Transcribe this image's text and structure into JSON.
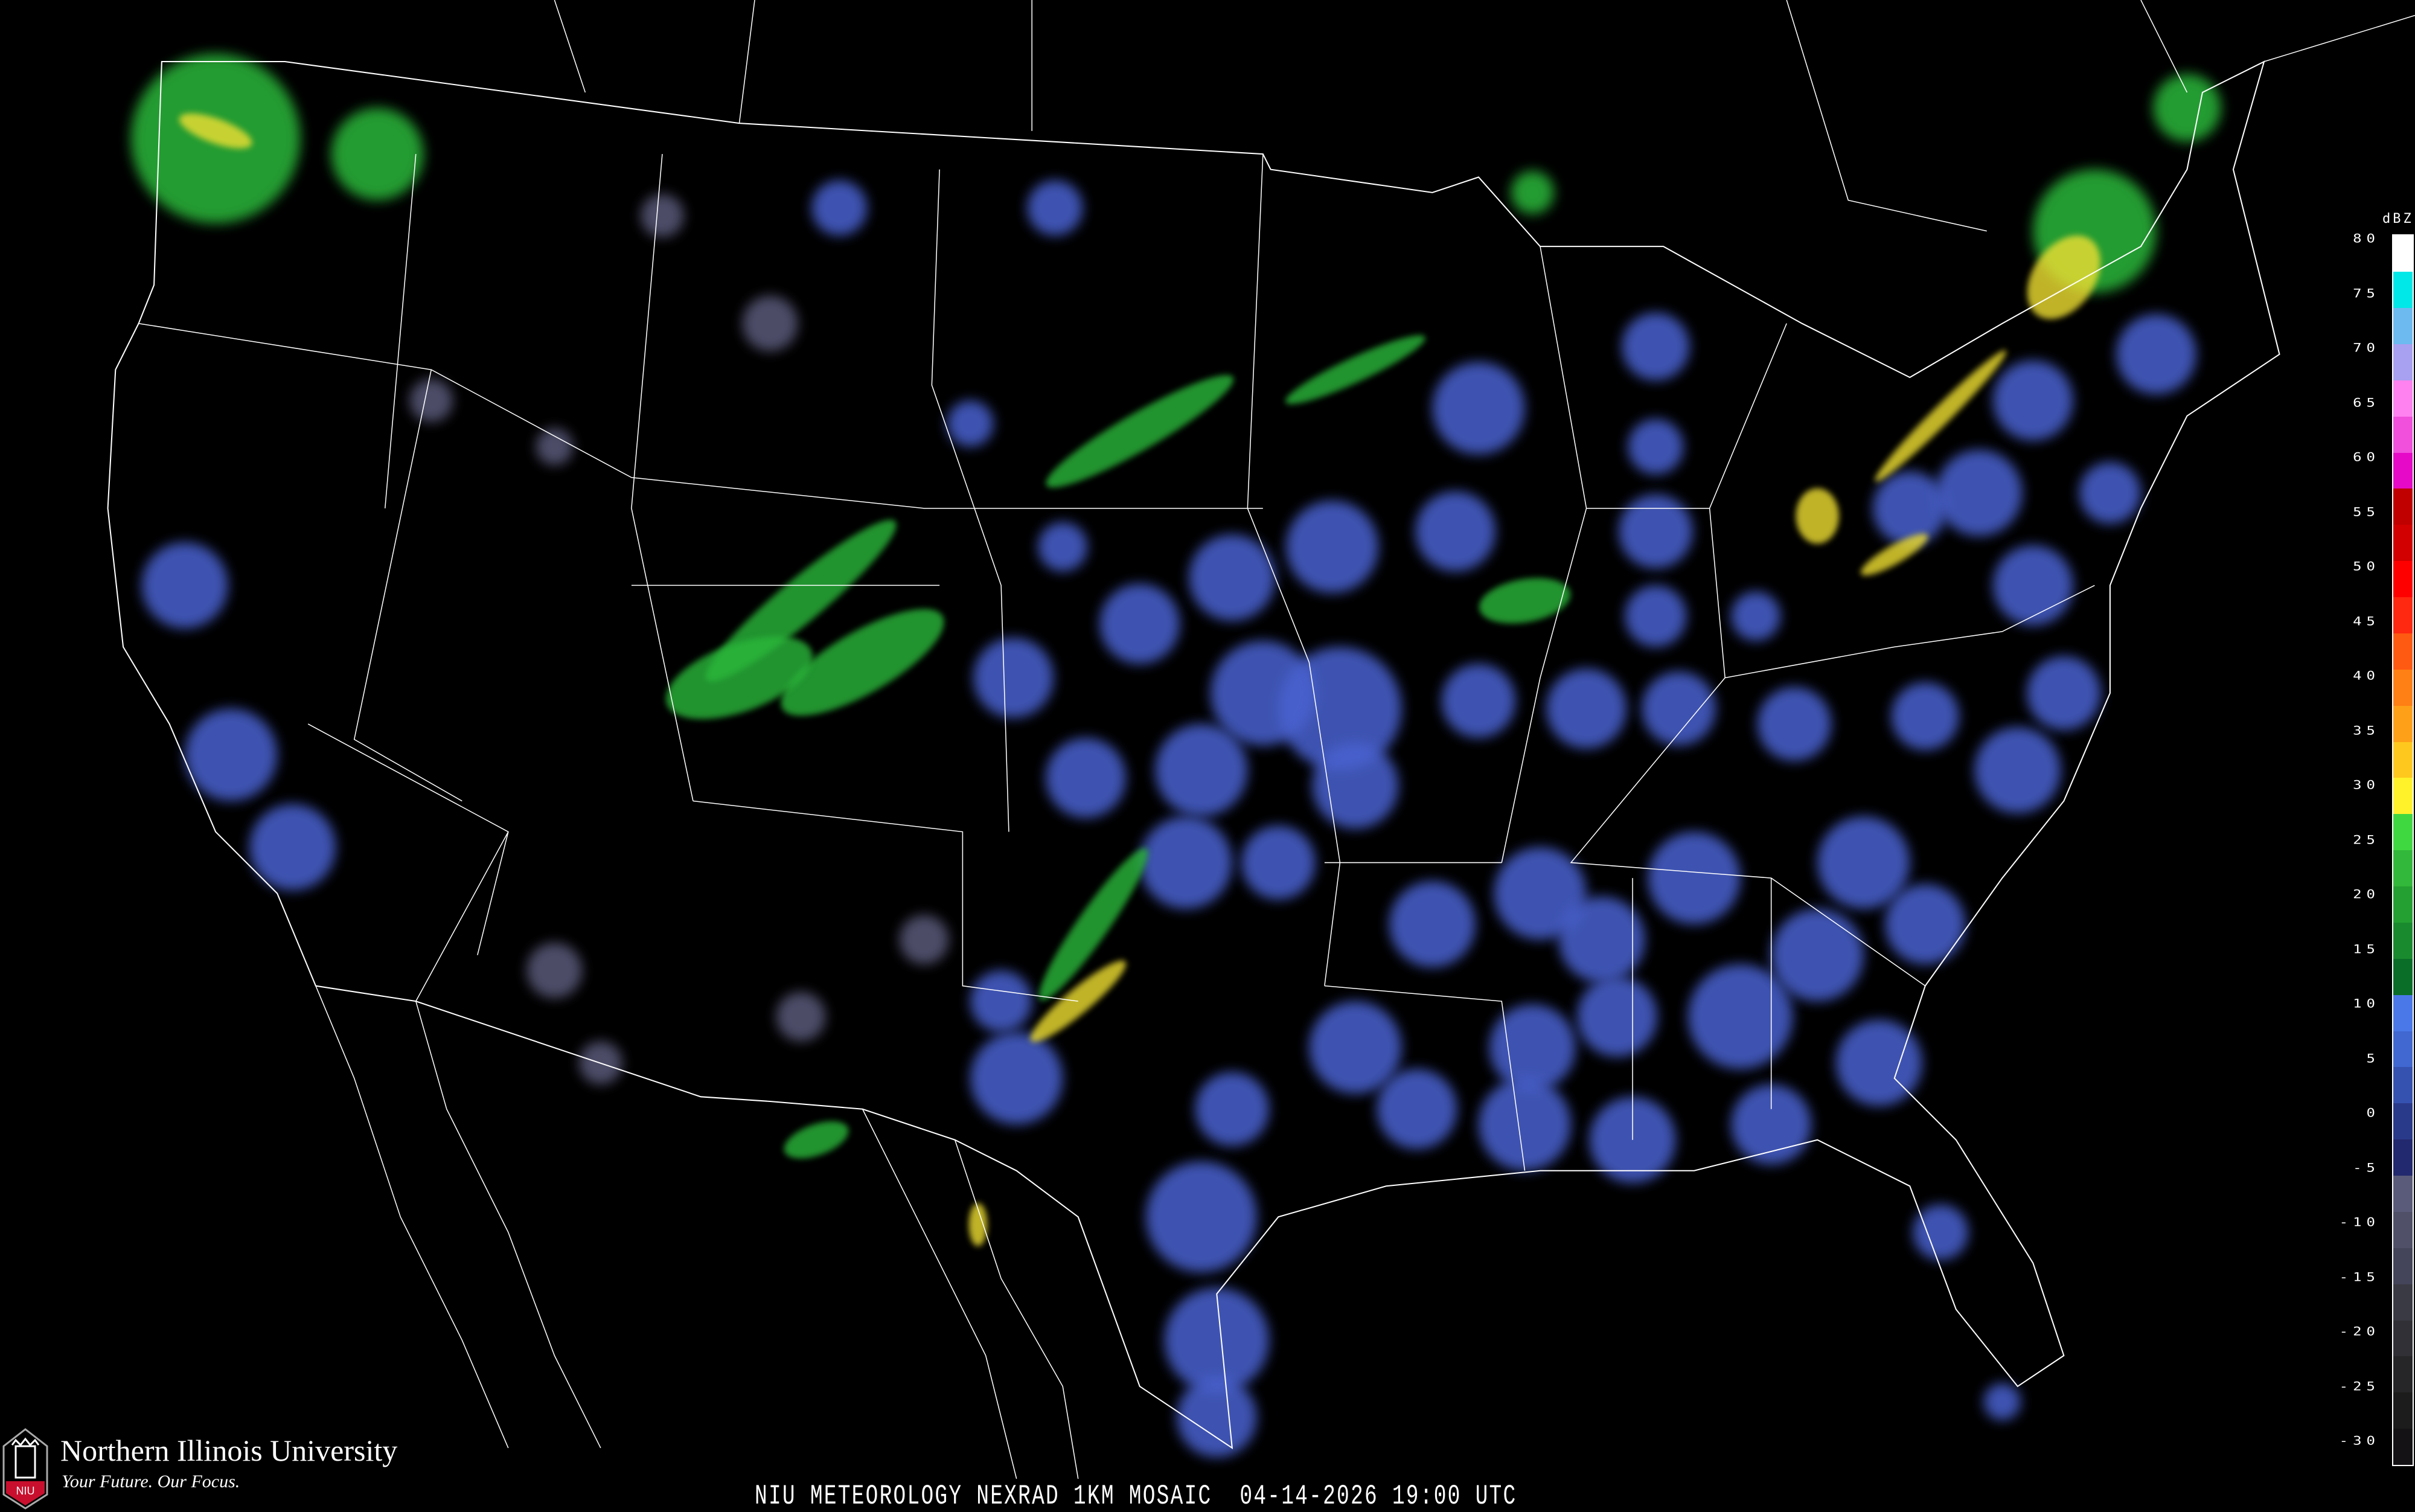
{
  "legend": {
    "unit": "dBZ",
    "ticks": [
      "80",
      "75",
      "70",
      "65",
      "60",
      "55",
      "50",
      "45",
      "40",
      "35",
      "30",
      "25",
      "20",
      "15",
      "10",
      "5",
      "0",
      "-5",
      "-10",
      "-15",
      "-20",
      "-25",
      "-30"
    ],
    "colors": [
      "#141214",
      "#1c1c1c",
      "#262628",
      "#303036",
      "#3a3a44",
      "#44445a",
      "#505068",
      "#5a5a7a",
      "#23296e",
      "#2a3a8a",
      "#3652b0",
      "#4068d0",
      "#4a78e8",
      "#0a6e28",
      "#1a8a2e",
      "#24a032",
      "#32b83a",
      "#40d840",
      "#fff22a",
      "#ffc81e",
      "#ffa019",
      "#ff8014",
      "#ff5a12",
      "#ff2810",
      "#ff0000",
      "#d20000",
      "#c00000",
      "#e60ac8",
      "#f050dc",
      "#ff82f0",
      "#a8a0f0",
      "#6cbaf0",
      "#00e8e8",
      "#ffffff"
    ]
  },
  "footer": {
    "title": "NIU METEOROLOGY NEXRAD 1KM MOSAIC  04-14-2026 19:00 UTC"
  },
  "logo": {
    "name": "Northern Illinois University",
    "tagline": "Your Future. Our Focus.",
    "mark": "NIU",
    "brand_color": "#c8102e"
  }
}
